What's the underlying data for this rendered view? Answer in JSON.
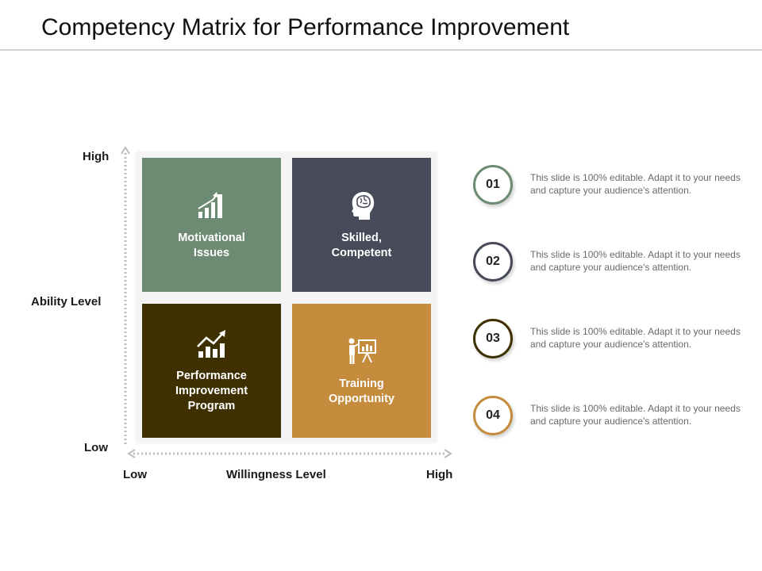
{
  "title": "Competency Matrix for Performance Improvement",
  "y_axis": {
    "label": "Ability Level",
    "high": "High",
    "low": "Low"
  },
  "x_axis": {
    "label": "Willingness Level",
    "low": "Low",
    "high": "High"
  },
  "quadrants": [
    {
      "label": "Motivational\nIssues",
      "icon": "bar-chart-growth-icon",
      "color": "#6d8b72"
    },
    {
      "label": "Skilled,\nCompetent",
      "icon": "head-brain-icon",
      "color": "#464a59"
    },
    {
      "label": "Performance\nImprovement\nProgram",
      "icon": "trend-chart-icon",
      "color": "#3e3000"
    },
    {
      "label": "Training\nOpportunity",
      "icon": "presenter-board-icon",
      "color": "#c68c3e"
    }
  ],
  "items": [
    {
      "number": "01",
      "text": "This slide is 100% editable. Adapt it to your needs and capture your audience's attention.",
      "color": "#6d8b72"
    },
    {
      "number": "02",
      "text": "This slide is 100% editable. Adapt it to your needs and capture your audience's attention.",
      "color": "#464a59"
    },
    {
      "number": "03",
      "text": "This slide is 100% editable. Adapt it to your needs and capture your audience's attention.",
      "color": "#3e3000"
    },
    {
      "number": "04",
      "text": "This slide is 100% editable. Adapt it to your needs and capture your audience's attention.",
      "color": "#c68c3e"
    }
  ]
}
